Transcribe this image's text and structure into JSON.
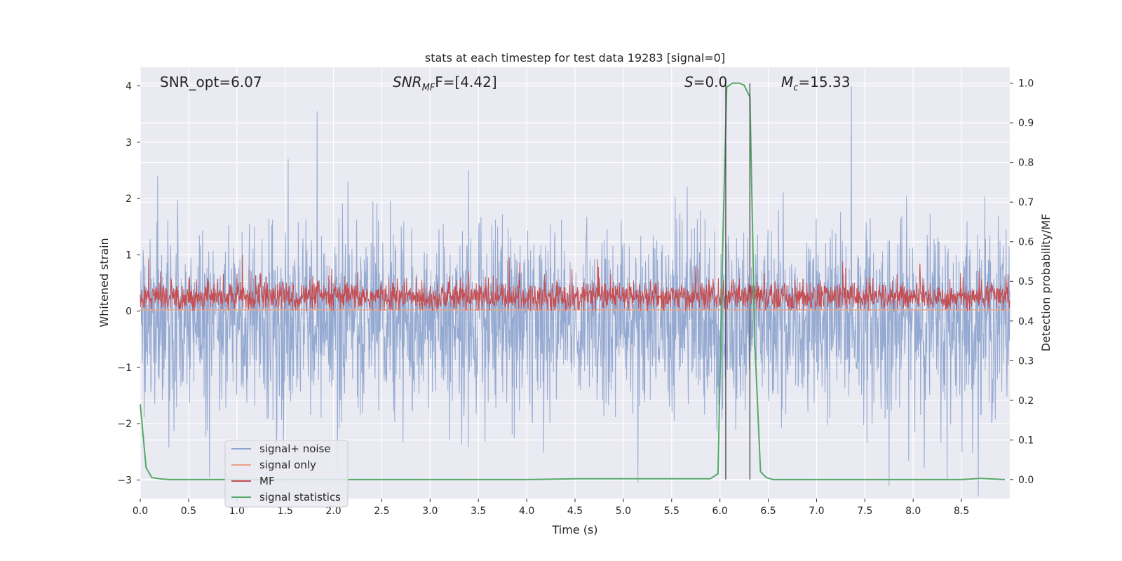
{
  "chart_data": {
    "type": "line",
    "title": "stats at each timestep for test data 19283 [signal=0]",
    "xlabel": "Time (s)",
    "ylabel": "Whitened strain",
    "y2label": "Detection probability/MF",
    "xlim": [
      0.0,
      9.0
    ],
    "ylim": [
      -3.33,
      4.33
    ],
    "y2lim": [
      -0.048,
      1.04
    ],
    "x_ticks": [
      "0.0",
      "0.5",
      "1.0",
      "1.5",
      "2.0",
      "2.5",
      "3.0",
      "3.5",
      "4.0",
      "4.5",
      "5.0",
      "5.5",
      "6.0",
      "6.5",
      "7.0",
      "7.5",
      "8.0",
      "8.5"
    ],
    "x_tick_values": [
      0.0,
      0.5,
      1.0,
      1.5,
      2.0,
      2.5,
      3.0,
      3.5,
      4.0,
      4.5,
      5.0,
      5.5,
      6.0,
      6.5,
      7.0,
      7.5,
      8.0,
      8.5
    ],
    "y_ticks": [
      "−3",
      "−2",
      "−1",
      "0",
      "1",
      "2",
      "3",
      "4"
    ],
    "y_tick_values": [
      -3,
      -2,
      -1,
      0,
      1,
      2,
      3,
      4
    ],
    "y2_ticks": [
      "0.0",
      "0.1",
      "0.2",
      "0.3",
      "0.4",
      "0.5",
      "0.6",
      "0.7",
      "0.8",
      "0.9",
      "1.0"
    ],
    "y2_tick_values": [
      0.0,
      0.1,
      0.2,
      0.3,
      0.4,
      0.5,
      0.6,
      0.7,
      0.8,
      0.9,
      1.0
    ],
    "grid": true,
    "legend_position": "lower-left",
    "annotations": {
      "snr_opt": "SNR_opt=6.07",
      "snr_mf_main": "SNR",
      "snr_mf_sub": "MF",
      "snr_mf_rest": "F=[4.42]",
      "s_stat": "=0.0",
      "s_label": "S",
      "mc_main": "M",
      "mc_sub": "c",
      "mc_rest": "=15.33"
    },
    "vertical_lines_x": [
      6.06,
      6.31
    ],
    "series": [
      {
        "name": "signal+ noise",
        "color": "#8fa5cf",
        "kind": "noise",
        "mean": -0.15,
        "sigma": 0.62,
        "spikes": [
          [
            1.83,
            3.55
          ],
          [
            7.36,
            4.0
          ],
          [
            1.53,
            2.7
          ],
          [
            0.18,
            2.4
          ],
          [
            3.4,
            2.5
          ],
          [
            7.75,
            -3.1
          ],
          [
            5.15,
            -3.05
          ],
          [
            8.35,
            -3.0
          ]
        ]
      },
      {
        "name": "signal only",
        "color": "#e8a48a",
        "kind": "flat",
        "value": 0.02
      },
      {
        "name": "MF",
        "color": "#c44e52",
        "kind": "mf",
        "mean": 0.25,
        "sigma": 0.14
      },
      {
        "name": "signal statistics",
        "color": "#55a868",
        "kind": "prob",
        "x": [
          0.0,
          0.06,
          0.12,
          0.2,
          0.3,
          0.5,
          1.0,
          2.0,
          3.0,
          4.0,
          4.5,
          5.0,
          5.5,
          5.9,
          5.98,
          6.03,
          6.07,
          6.13,
          6.2,
          6.25,
          6.31,
          6.36,
          6.42,
          6.48,
          6.55,
          7.0,
          8.0,
          8.5,
          8.7,
          8.95
        ],
        "y": [
          0.19,
          0.03,
          0.005,
          0.002,
          0.0,
          0.0,
          0.0,
          0.0,
          0.0,
          0.0,
          0.002,
          0.002,
          0.002,
          0.002,
          0.015,
          0.6,
          0.99,
          1.0,
          1.0,
          0.995,
          0.965,
          0.35,
          0.02,
          0.005,
          0.0,
          0.0,
          0.0,
          0.0,
          0.003,
          0.0
        ]
      }
    ]
  }
}
